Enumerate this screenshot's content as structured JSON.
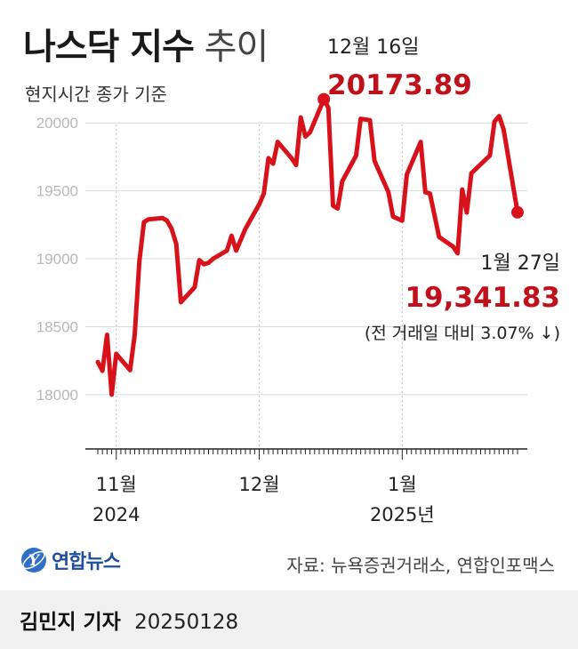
{
  "title_bold": "나스닥 지수",
  "title_light": "추이",
  "subtitle": "현지시간 종가 기준",
  "colors": {
    "line": "#d8121b",
    "accent": "#c0111b",
    "grid": "#c8c8c8",
    "axis": "#222222"
  },
  "chart_data": {
    "type": "line",
    "title": "나스닥 지수 추이",
    "subtitle": "현지시간 종가 기준",
    "ylim": [
      17600,
      20250
    ],
    "yticks": [
      20000,
      19500,
      19000,
      18500,
      18000
    ],
    "ytick_labels": [
      "20000",
      "19500",
      "19000",
      "18500",
      "18000"
    ],
    "xticks": [
      {
        "date": "2024-11-01",
        "label": "11월",
        "sublabel": "2024"
      },
      {
        "date": "2024-12-02",
        "label": "12월",
        "sublabel": ""
      },
      {
        "date": "2025-01-02",
        "label": "1월",
        "sublabel": "2025년"
      }
    ],
    "grid": "vertical dotted at month starts",
    "x": [
      "2024-10-28",
      "2024-10-29",
      "2024-10-30",
      "2024-10-31",
      "2024-11-01",
      "2024-11-04",
      "2024-11-05",
      "2024-11-06",
      "2024-11-07",
      "2024-11-08",
      "2024-11-11",
      "2024-11-12",
      "2024-11-13",
      "2024-11-14",
      "2024-11-15",
      "2024-11-18",
      "2024-11-19",
      "2024-11-20",
      "2024-11-21",
      "2024-11-22",
      "2024-11-25",
      "2024-11-26",
      "2024-11-27",
      "2024-11-29",
      "2024-12-02",
      "2024-12-03",
      "2024-12-04",
      "2024-12-05",
      "2024-12-06",
      "2024-12-09",
      "2024-12-10",
      "2024-12-11",
      "2024-12-12",
      "2024-12-13",
      "2024-12-16",
      "2024-12-17",
      "2024-12-18",
      "2024-12-19",
      "2024-12-20",
      "2024-12-23",
      "2024-12-24",
      "2024-12-26",
      "2024-12-27",
      "2024-12-30",
      "2024-12-31",
      "2025-01-02",
      "2025-01-03",
      "2025-01-06",
      "2025-01-07",
      "2025-01-08",
      "2025-01-10",
      "2025-01-13",
      "2025-01-14",
      "2025-01-15",
      "2025-01-16",
      "2025-01-17",
      "2025-01-21",
      "2025-01-22",
      "2025-01-23",
      "2025-01-24",
      "2025-01-27"
    ],
    "series": [
      {
        "values": [
          18240,
          18175,
          18440,
          18000,
          18300,
          18180,
          18440,
          18980,
          19270,
          19290,
          19300,
          19280,
          19220,
          19110,
          18680,
          18790,
          18990,
          18960,
          18970,
          19000,
          19060,
          19170,
          19060,
          19220,
          19400,
          19480,
          19740,
          19700,
          19860,
          19740,
          19690,
          20040,
          19900,
          19930,
          20173.89,
          20110,
          19390,
          19370,
          19570,
          19760,
          20030,
          20020,
          19720,
          19490,
          19310,
          19280,
          19620,
          19860,
          19490,
          19480,
          19160,
          19090,
          19040,
          19510,
          19340,
          19630,
          19760,
          20010,
          20050,
          19950,
          19341.83
        ]
      }
    ],
    "annotations": [
      {
        "date": "2024-12-16",
        "label": "12월 16일",
        "value": "20173.89"
      },
      {
        "date": "2025-01-27",
        "label": "1월 27일",
        "value": "19,341.83",
        "note": "(전 거래일 대비 3.07% ↓)"
      }
    ]
  },
  "logo": {
    "name": "연합뉴스",
    "mark": "Y"
  },
  "source": "자료: 뉴욕증권거래소, 연합인포맥스",
  "reporter": {
    "name": "김민지 기자",
    "date": "20250128"
  }
}
